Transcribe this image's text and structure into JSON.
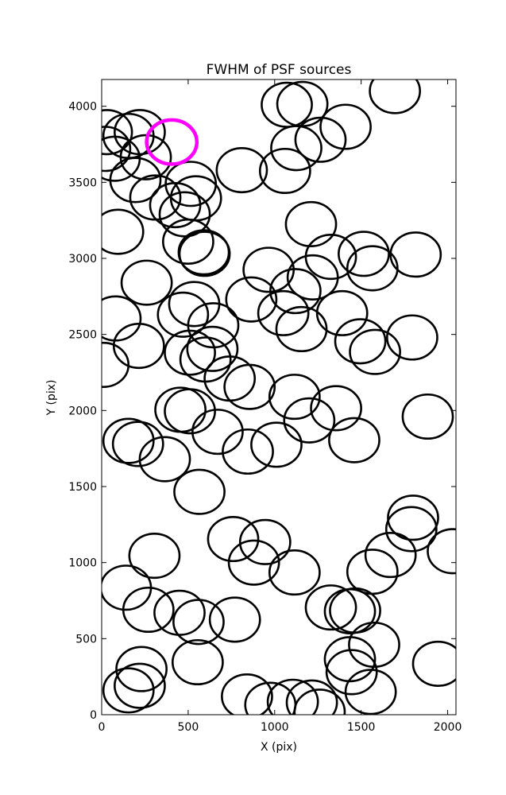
{
  "chart_data": {
    "type": "scatter",
    "title": "FWHM of PSF sources",
    "xlabel": "X (pix)",
    "ylabel": "Y (pix)",
    "xlim": [
      0,
      2048
    ],
    "ylim": [
      0,
      4176
    ],
    "xticks": [
      0,
      500,
      1000,
      1500,
      2000
    ],
    "yticks": [
      0,
      500,
      1000,
      1500,
      2000,
      2500,
      3000,
      3500,
      4000
    ],
    "grid": false,
    "marker": "open-circle",
    "marker_color": "#000000",
    "highlight_color": "#ff00ff",
    "circle_radius_pix": 145,
    "highlight_radius_pix": 145,
    "highlight": {
      "x": 405,
      "y": 3765
    },
    "points": [
      {
        "x": 30,
        "y": 3830
      },
      {
        "x": 20,
        "y": 3720
      },
      {
        "x": 75,
        "y": 3655
      },
      {
        "x": 155,
        "y": 3805
      },
      {
        "x": 220,
        "y": 3830
      },
      {
        "x": 255,
        "y": 3665
      },
      {
        "x": 195,
        "y": 3515
      },
      {
        "x": 310,
        "y": 3400
      },
      {
        "x": 425,
        "y": 3350
      },
      {
        "x": 480,
        "y": 3290
      },
      {
        "x": 515,
        "y": 3490
      },
      {
        "x": 545,
        "y": 3395
      },
      {
        "x": 500,
        "y": 3110
      },
      {
        "x": 590,
        "y": 3040
      },
      {
        "x": 595,
        "y": 3030
      },
      {
        "x": 95,
        "y": 3175
      },
      {
        "x": 260,
        "y": 2840
      },
      {
        "x": 80,
        "y": 2605
      },
      {
        "x": 215,
        "y": 2425
      },
      {
        "x": 10,
        "y": 2300
      },
      {
        "x": 470,
        "y": 2630
      },
      {
        "x": 535,
        "y": 2700
      },
      {
        "x": 645,
        "y": 2560
      },
      {
        "x": 640,
        "y": 2405
      },
      {
        "x": 510,
        "y": 2380
      },
      {
        "x": 600,
        "y": 2335
      },
      {
        "x": 740,
        "y": 2210
      },
      {
        "x": 855,
        "y": 2155
      },
      {
        "x": 455,
        "y": 2005
      },
      {
        "x": 510,
        "y": 1995
      },
      {
        "x": 670,
        "y": 1860
      },
      {
        "x": 155,
        "y": 1800
      },
      {
        "x": 210,
        "y": 1780
      },
      {
        "x": 365,
        "y": 1680
      },
      {
        "x": 565,
        "y": 1465
      },
      {
        "x": 845,
        "y": 1730
      },
      {
        "x": 1010,
        "y": 1775
      },
      {
        "x": 965,
        "y": 2925
      },
      {
        "x": 865,
        "y": 2730
      },
      {
        "x": 1050,
        "y": 2640
      },
      {
        "x": 1120,
        "y": 2785
      },
      {
        "x": 1220,
        "y": 2875
      },
      {
        "x": 1155,
        "y": 2535
      },
      {
        "x": 1325,
        "y": 3010
      },
      {
        "x": 1390,
        "y": 2640
      },
      {
        "x": 1495,
        "y": 2455
      },
      {
        "x": 1580,
        "y": 2385
      },
      {
        "x": 1515,
        "y": 3030
      },
      {
        "x": 1565,
        "y": 2935
      },
      {
        "x": 1815,
        "y": 3025
      },
      {
        "x": 1795,
        "y": 2480
      },
      {
        "x": 1115,
        "y": 2090
      },
      {
        "x": 1200,
        "y": 1935
      },
      {
        "x": 1355,
        "y": 2015
      },
      {
        "x": 1460,
        "y": 1805
      },
      {
        "x": 1885,
        "y": 1960
      },
      {
        "x": 1210,
        "y": 3225
      },
      {
        "x": 1070,
        "y": 4010
      },
      {
        "x": 1160,
        "y": 4015
      },
      {
        "x": 1125,
        "y": 3725
      },
      {
        "x": 1060,
        "y": 3575
      },
      {
        "x": 1265,
        "y": 3780
      },
      {
        "x": 1410,
        "y": 3865
      },
      {
        "x": 1695,
        "y": 4100
      },
      {
        "x": 810,
        "y": 3580
      },
      {
        "x": 305,
        "y": 1045
      },
      {
        "x": 140,
        "y": 835
      },
      {
        "x": 270,
        "y": 690
      },
      {
        "x": 450,
        "y": 670
      },
      {
        "x": 560,
        "y": 610
      },
      {
        "x": 770,
        "y": 625
      },
      {
        "x": 760,
        "y": 1155
      },
      {
        "x": 945,
        "y": 1135
      },
      {
        "x": 880,
        "y": 1000
      },
      {
        "x": 1115,
        "y": 935
      },
      {
        "x": 1325,
        "y": 705
      },
      {
        "x": 1435,
        "y": 680
      },
      {
        "x": 1465,
        "y": 685
      },
      {
        "x": 1565,
        "y": 940
      },
      {
        "x": 1670,
        "y": 1050
      },
      {
        "x": 1800,
        "y": 1295
      },
      {
        "x": 1790,
        "y": 1220
      },
      {
        "x": 2030,
        "y": 1075
      },
      {
        "x": 1575,
        "y": 460
      },
      {
        "x": 1435,
        "y": 365
      },
      {
        "x": 1445,
        "y": 280
      },
      {
        "x": 1555,
        "y": 150
      },
      {
        "x": 1945,
        "y": 335
      },
      {
        "x": 555,
        "y": 345
      },
      {
        "x": 230,
        "y": 300
      },
      {
        "x": 220,
        "y": 190
      },
      {
        "x": 155,
        "y": 160
      },
      {
        "x": 840,
        "y": 120
      },
      {
        "x": 975,
        "y": 65
      },
      {
        "x": 1105,
        "y": 85
      },
      {
        "x": 1215,
        "y": 80
      },
      {
        "x": 1260,
        "y": 20
      }
    ]
  }
}
